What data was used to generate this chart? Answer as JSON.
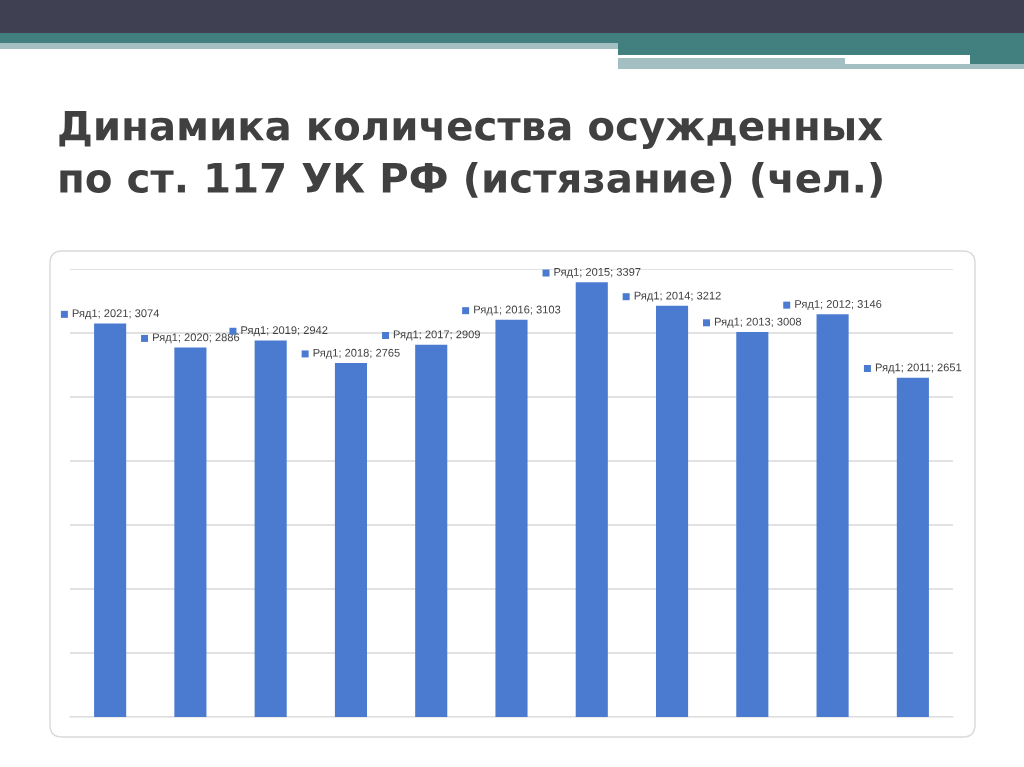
{
  "chart_data": {
    "type": "bar",
    "title": "Динамика количества осужденных\nпо ст. 117 УК РФ (истязание) (чел.)",
    "categories": [
      null,
      null,
      null,
      null,
      null,
      null,
      null,
      null,
      null,
      null,
      null
    ],
    "series": [
      {
        "color": "#4b7bd0",
        "values": [
          3074,
          2886,
          2942,
          2765,
          2909,
          3103,
          3397,
          3212,
          3008,
          3146,
          2651
        ],
        "value_labels": [
          "Ряд1; 2021; 3074",
          "Ряд1; 2020; 2886",
          "Ряд1; 2019; 2942",
          "Ряд1; 2018; 2765",
          "Ряд1; 2017; 2909",
          "Ряд1; 2016; 3103",
          "Ряд1; 2015; 3397",
          "Ряд1; 2014; 3212",
          "Ряд1; 2013; 3008",
          "Ряд1; 2012; 3146",
          "Ряд1; 2011; 2651"
        ]
      }
    ],
    "ylim": [
      0,
      3500
    ],
    "yticks": [
      0,
      500,
      1000,
      1500,
      2000,
      2500,
      3000,
      3500
    ],
    "grid": "y",
    "tick_labels": false
  }
}
